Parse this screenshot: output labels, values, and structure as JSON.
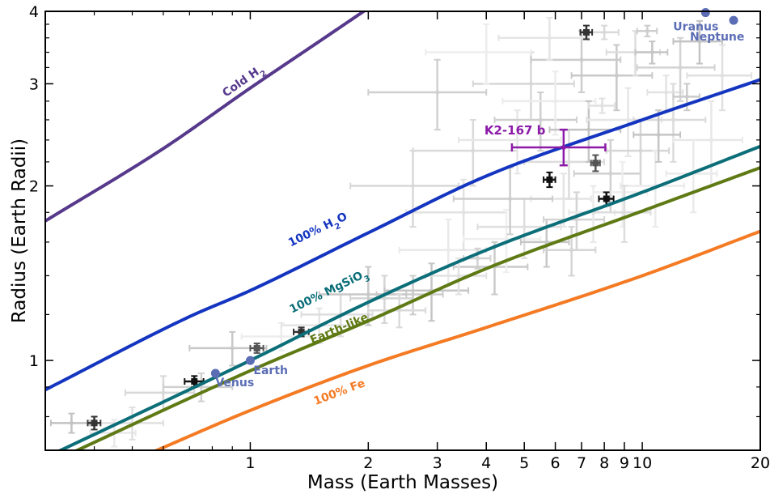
{
  "chart_data": {
    "type": "scatter",
    "xlabel": "Mass (Earth Masses)",
    "ylabel": "Radius (Earth Radii)",
    "x_scale": "log",
    "y_scale": "log",
    "xlim": [
      0.3,
      20
    ],
    "ylim": [
      0.7,
      4
    ],
    "x_ticks": [
      {
        "value": 1,
        "label": "1"
      },
      {
        "value": 2,
        "label": "2"
      },
      {
        "value": 3,
        "label": "3"
      },
      {
        "value": 4,
        "label": "4"
      },
      {
        "value": 5,
        "label": "5"
      },
      {
        "value": 6,
        "label": "6"
      },
      {
        "value": 7,
        "label": "7"
      },
      {
        "value": 8,
        "label": "8"
      },
      {
        "value": 9,
        "label": "9"
      },
      {
        "value": 10,
        "label": "10"
      },
      {
        "value": 20,
        "label": "20"
      }
    ],
    "y_ticks": [
      {
        "value": 1,
        "label": "1"
      },
      {
        "value": 2,
        "label": "2"
      },
      {
        "value": 3,
        "label": "3"
      },
      {
        "value": 4,
        "label": "4"
      }
    ],
    "models": [
      {
        "name": "Cold H",
        "sub": "2",
        "color": "#57398c",
        "points": [
          [
            0.3,
            1.74
          ],
          [
            0.6,
            2.32
          ],
          [
            1.0,
            2.95
          ],
          [
            1.5,
            3.55
          ],
          [
            2.0,
            4.05
          ]
        ],
        "label_at": [
          0.97,
          3.0
        ]
      },
      {
        "name": "100% H",
        "sub": "2",
        "suffix": "O",
        "color": "#1435c0",
        "points": [
          [
            0.3,
            0.89
          ],
          [
            0.7,
            1.19
          ],
          [
            1.0,
            1.32
          ],
          [
            2.0,
            1.66
          ],
          [
            4.0,
            2.08
          ],
          [
            10.0,
            2.6
          ],
          [
            20.0,
            3.05
          ]
        ],
        "label_at": [
          1.5,
          1.66
        ]
      },
      {
        "name": "100% MgSiO",
        "sub": "3",
        "color": "#0b6e78",
        "points": [
          [
            0.3,
            0.68
          ],
          [
            1.0,
            1.0
          ],
          [
            2.0,
            1.26
          ],
          [
            4.0,
            1.55
          ],
          [
            10.0,
            1.95
          ],
          [
            20.0,
            2.34
          ]
        ],
        "label_at": [
          1.6,
          1.3
        ]
      },
      {
        "name": "Earth-like",
        "color": "#5f7a14",
        "points": [
          [
            0.3,
            0.66
          ],
          [
            1.0,
            0.96
          ],
          [
            2.0,
            1.17
          ],
          [
            4.0,
            1.44
          ],
          [
            10.0,
            1.81
          ],
          [
            20.0,
            2.15
          ]
        ],
        "label_at": [
          1.7,
          1.12
        ]
      },
      {
        "name": "100% Fe",
        "color": "#f47b24",
        "points": [
          [
            0.55,
            0.69
          ],
          [
            1.0,
            0.82
          ],
          [
            2.0,
            0.98
          ],
          [
            4.0,
            1.14
          ],
          [
            10.0,
            1.4
          ],
          [
            20.0,
            1.67
          ]
        ],
        "label_at": [
          1.7,
          0.87
        ]
      }
    ],
    "solar_system": [
      {
        "name": "Venus",
        "x": 0.815,
        "y": 0.95,
        "label_dx": 0.0,
        "label_dy": 16
      },
      {
        "name": "Earth",
        "x": 1.0,
        "y": 1.0,
        "label_dx": 4,
        "label_dy": 17
      },
      {
        "name": "Uranus",
        "x": 14.5,
        "y": 3.98,
        "label_dx": -40,
        "label_dy": 22
      },
      {
        "name": "Neptune",
        "x": 17.1,
        "y": 3.86,
        "label_dx": -54,
        "label_dy": 25
      }
    ],
    "target": {
      "name": "K2-167 b",
      "x": 6.3,
      "y": 2.33,
      "x_err": [
        4.65,
        8.05
      ],
      "y_err": [
        2.17,
        2.5
      ],
      "color": "#8b1aa8"
    },
    "highlighted_planets": [
      {
        "x": 0.4,
        "y": 0.78,
        "xe": 0.015,
        "ye": 0.02
      },
      {
        "x": 0.72,
        "y": 0.92,
        "xe": 0.04,
        "ye": 0.02
      },
      {
        "x": 1.04,
        "y": 1.05,
        "xe": 0.04,
        "ye": 0.02
      },
      {
        "x": 1.35,
        "y": 1.12,
        "xe": 0.06,
        "ye": 0.02
      },
      {
        "x": 5.8,
        "y": 2.05,
        "xe": 0.2,
        "ye": 0.06
      },
      {
        "x": 7.6,
        "y": 2.19,
        "xe": 0.2,
        "ye": 0.07
      },
      {
        "x": 7.2,
        "y": 3.68,
        "xe": 0.25,
        "ye": 0.1
      },
      {
        "x": 8.1,
        "y": 1.9,
        "xe": 0.35,
        "ye": 0.05
      }
    ],
    "background_planets": [
      [
        0.35,
        0.78,
        0.04,
        0.03
      ],
      [
        0.45,
        0.75,
        0.06,
        0.04
      ],
      [
        0.5,
        0.78,
        0.1,
        0.05
      ],
      [
        0.6,
        0.88,
        0.12,
        0.06
      ],
      [
        0.75,
        0.9,
        0.15,
        0.05
      ],
      [
        0.9,
        1.05,
        0.2,
        0.07
      ],
      [
        1.2,
        1.1,
        0.25,
        0.06
      ],
      [
        1.5,
        1.15,
        0.3,
        0.08
      ],
      [
        1.7,
        1.2,
        0.35,
        0.1
      ],
      [
        2.2,
        1.28,
        0.4,
        0.12
      ],
      [
        2.6,
        1.3,
        0.5,
        0.1
      ],
      [
        2.9,
        1.32,
        0.7,
        0.15
      ],
      [
        3.2,
        1.55,
        0.8,
        0.2
      ],
      [
        3.5,
        1.8,
        1.0,
        0.25
      ],
      [
        3.7,
        2.3,
        1.1,
        0.3
      ],
      [
        3.8,
        1.5,
        0.3,
        0.06
      ],
      [
        4.2,
        1.45,
        0.9,
        0.15
      ],
      [
        4.5,
        1.62,
        1.0,
        0.2
      ],
      [
        4.8,
        2.4,
        1.4,
        0.3
      ],
      [
        5.0,
        1.7,
        1.2,
        0.2
      ],
      [
        5.2,
        3.0,
        1.5,
        0.4
      ],
      [
        5.5,
        2.6,
        1.3,
        0.3
      ],
      [
        5.7,
        1.6,
        0.8,
        0.15
      ],
      [
        6.0,
        2.8,
        1.6,
        0.35
      ],
      [
        6.3,
        1.9,
        1.1,
        0.2
      ],
      [
        6.5,
        2.2,
        1.5,
        0.3
      ],
      [
        6.8,
        1.75,
        1.2,
        0.2
      ],
      [
        7.0,
        3.3,
        1.8,
        0.4
      ],
      [
        7.3,
        2.5,
        1.5,
        0.3
      ],
      [
        7.5,
        1.8,
        1.0,
        0.2
      ],
      [
        7.9,
        2.75,
        0.6,
        0.08
      ],
      [
        8.0,
        3.68,
        0.7,
        0.1
      ],
      [
        8.3,
        2.1,
        1.6,
        0.3
      ],
      [
        8.6,
        3.1,
        2.0,
        0.4
      ],
      [
        8.9,
        1.95,
        1.4,
        0.25
      ],
      [
        9.2,
        2.6,
        2.0,
        0.35
      ],
      [
        9.6,
        3.4,
        1.5,
        0.3
      ],
      [
        9.9,
        2.3,
        1.8,
        0.3
      ],
      [
        10.3,
        3.7,
        0.6,
        0.08
      ],
      [
        10.6,
        3.4,
        1.0,
        0.15
      ],
      [
        10.8,
        2.0,
        2.0,
        0.3
      ],
      [
        11.5,
        2.9,
        1.2,
        0.2
      ],
      [
        12.0,
        2.6,
        2.5,
        0.4
      ],
      [
        12.5,
        3.2,
        2.8,
        0.4
      ],
      [
        13.0,
        2.85,
        1.0,
        0.15
      ],
      [
        14.0,
        3.55,
        2.0,
        0.3
      ],
      [
        15.0,
        2.4,
        3.0,
        0.4
      ],
      [
        16.0,
        3.1,
        3.0,
        0.4
      ],
      [
        2.6,
        2.0,
        0.8,
        0.3
      ],
      [
        3.0,
        2.9,
        1.0,
        0.4
      ],
      [
        2.0,
        1.3,
        0.5,
        0.15
      ],
      [
        4.0,
        3.4,
        1.2,
        0.4
      ],
      [
        5.8,
        3.6,
        1.5,
        0.3
      ],
      [
        9.0,
        1.8,
        1.5,
        0.2
      ],
      [
        6.6,
        1.55,
        1.0,
        0.15
      ],
      [
        4.6,
        1.9,
        1.3,
        0.25
      ],
      [
        11.0,
        2.45,
        1.5,
        0.25
      ],
      [
        13.5,
        2.1,
        2.0,
        0.3
      ],
      [
        3.4,
        1.4,
        0.6,
        0.1
      ],
      [
        2.4,
        1.22,
        0.4,
        0.08
      ]
    ]
  }
}
